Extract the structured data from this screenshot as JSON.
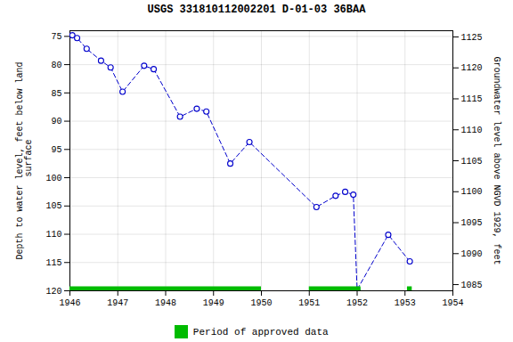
{
  "chart_data": {
    "type": "line",
    "title": "USGS 331810112002201 D-01-03 36BAA",
    "ylabel": "Depth to water level, feet below land\n surface",
    "y2label": "Groundwater level above NGVD 1929, feet",
    "x": [
      1946.05,
      1946.15,
      1946.35,
      1946.65,
      1946.85,
      1947.1,
      1947.55,
      1947.75,
      1948.3,
      1948.65,
      1948.85,
      1949.35,
      1949.75,
      1951.15,
      1951.55,
      1951.75,
      1951.92,
      1952.0,
      1952.65,
      1953.1
    ],
    "series": [
      {
        "values": [
          74.8,
          75.3,
          77.2,
          79.3,
          80.5,
          84.8,
          80.2,
          80.8,
          89.2,
          87.8,
          88.3,
          97.5,
          93.7,
          105.2,
          103.2,
          102.5,
          103.0,
          119.8,
          110.1,
          114.8
        ],
        "color": "#0000cc",
        "marker": "circle",
        "line_style": "dashed"
      },
      {
        "name": "Period of approved data",
        "type": "span",
        "color": "#00bb00",
        "periods": [
          [
            1946.0,
            1950.0
          ],
          [
            1951.0,
            1952.08
          ],
          [
            1953.05,
            1953.15
          ]
        ]
      }
    ],
    "xlim": [
      1946,
      1954
    ],
    "xticks": [
      1946,
      1947,
      1948,
      1949,
      1950,
      1951,
      1952,
      1953,
      1954
    ],
    "ylim": [
      120,
      74
    ],
    "yticks": [
      75,
      80,
      85,
      90,
      95,
      100,
      105,
      110,
      115,
      120
    ],
    "y2lim": [
      1084,
      1126
    ],
    "y2ticks": [
      1085,
      1090,
      1095,
      1100,
      1105,
      1110,
      1115,
      1120,
      1125
    ],
    "grid": true,
    "legend": "bottom"
  }
}
